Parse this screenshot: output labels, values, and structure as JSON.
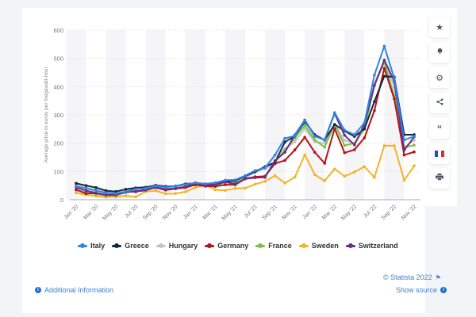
{
  "chart_data": {
    "type": "line",
    "title": "",
    "xlabel": "",
    "ylabel": "Average price in euros per megawatt-hour",
    "ylim": [
      0,
      600
    ],
    "yticks": [
      "0",
      "100",
      "200",
      "300",
      "400",
      "500",
      "600"
    ],
    "grid": true,
    "legend": "bottom",
    "x": [
      "Jan '20",
      "Feb '20",
      "Mar '20",
      "Apr '20",
      "May '20",
      "Jun '20",
      "Jul '20",
      "Aug '20",
      "Sep '20",
      "Oct '20",
      "Nov '20",
      "Dec '20",
      "Jan '21",
      "Feb '21",
      "Mar '21",
      "Apr '21",
      "May '21",
      "Jun '21",
      "Jul '21",
      "Aug '21",
      "Sep '21",
      "Oct '21",
      "Nov '21",
      "Dec '21",
      "Jan '22",
      "Feb '22",
      "Mar '22",
      "Apr '22",
      "May '22",
      "Jun '22",
      "Jul '22",
      "Aug '22",
      "Sep '22",
      "Oct '22",
      "Nov '22"
    ],
    "xtick_labels": [
      "Jan '20",
      "Mar '20",
      "May '20",
      "Jul '20",
      "Sep '20",
      "Nov '20",
      "Jan '21",
      "Mar '21",
      "May '21",
      "Jul '21",
      "Sep '21",
      "Nov '21",
      "Jan '22",
      "Mar '22",
      "May '22",
      "Jul '22",
      "Sep '22",
      "Nov '22"
    ],
    "series": [
      {
        "name": "Italy",
        "color": "#2f85e4",
        "values": [
          47,
          40,
          32,
          24,
          22,
          28,
          38,
          40,
          49,
          44,
          49,
          54,
          60,
          56,
          60,
          69,
          70,
          85,
          103,
          113,
          158,
          217,
          226,
          281,
          224,
          212,
          308,
          246,
          230,
          272,
          441,
          543,
          430,
          211,
          224
        ]
      },
      {
        "name": "Greece",
        "color": "#0f2942",
        "values": [
          58,
          50,
          43,
          32,
          29,
          37,
          42,
          44,
          51,
          47,
          48,
          56,
          58,
          56,
          59,
          65,
          67,
          83,
          99,
          117,
          132,
          204,
          225,
          276,
          230,
          211,
          266,
          243,
          224,
          251,
          347,
          437,
          434,
          230,
          230
        ]
      },
      {
        "name": "Hungary",
        "color": "#c4c4c4",
        "values": [
          52,
          43,
          35,
          27,
          24,
          32,
          39,
          40,
          46,
          42,
          45,
          50,
          60,
          52,
          56,
          60,
          59,
          78,
          97,
          109,
          128,
          181,
          205,
          251,
          205,
          200,
          267,
          210,
          200,
          250,
          410,
          490,
          400,
          185,
          210
        ]
      },
      {
        "name": "Germany",
        "color": "#b5121b",
        "values": [
          35,
          22,
          23,
          17,
          18,
          26,
          30,
          35,
          43,
          34,
          39,
          43,
          53,
          48,
          47,
          53,
          53,
          74,
          81,
          83,
          128,
          139,
          176,
          221,
          168,
          129,
          252,
          166,
          177,
          219,
          315,
          465,
          357,
          158,
          169
        ]
      },
      {
        "name": "France",
        "color": "#7cc242",
        "values": [
          35,
          25,
          20,
          15,
          15,
          27,
          30,
          32,
          45,
          36,
          39,
          46,
          58,
          48,
          47,
          63,
          60,
          75,
          79,
          83,
          134,
          175,
          218,
          263,
          212,
          186,
          267,
          192,
          200,
          249,
          403,
          487,
          367,
          185,
          193
        ]
      },
      {
        "name": "Sweden",
        "color": "#f2b524",
        "values": [
          24,
          17,
          13,
          9,
          10,
          14,
          10,
          29,
          32,
          21,
          22,
          28,
          43,
          52,
          35,
          33,
          40,
          41,
          55,
          65,
          85,
          59,
          80,
          159,
          89,
          67,
          109,
          83,
          98,
          117,
          79,
          191,
          191,
          69,
          120
        ]
      },
      {
        "name": "Switzerland",
        "color": "#6c2c8a",
        "values": [
          43,
          32,
          24,
          17,
          17,
          28,
          28,
          34,
          44,
          37,
          40,
          46,
          59,
          53,
          53,
          63,
          55,
          74,
          78,
          79,
          138,
          168,
          229,
          282,
          226,
          211,
          305,
          228,
          194,
          268,
          404,
          494,
          420,
          175,
          222
        ]
      }
    ]
  },
  "footer": {
    "copyright": "© Statista 2022",
    "show_source": "Show source",
    "additional_info": "Additional Information"
  },
  "sidebar": {
    "icons": [
      "star-icon",
      "bell-icon",
      "gear-icon",
      "share-icon",
      "quote-icon",
      "french-flag-icon",
      "print-icon"
    ]
  }
}
